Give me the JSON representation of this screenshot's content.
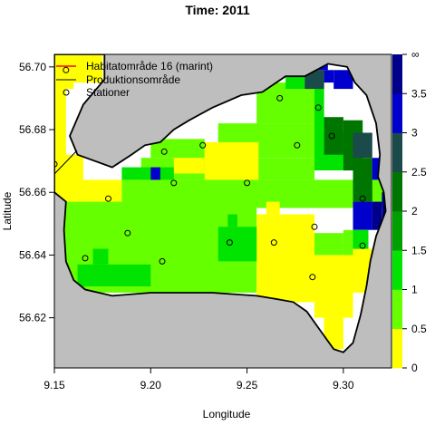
{
  "chart_data": {
    "type": "heatmap",
    "title": "Time: 2011",
    "xlabel": "Longitude",
    "ylabel": "Latitude",
    "xlim": [
      9.15,
      9.325
    ],
    "ylim": [
      56.604,
      56.704
    ],
    "xticks": [
      "9.15",
      "9.20",
      "9.25",
      "9.30"
    ],
    "yticks": [
      "56.62",
      "56.64",
      "56.66",
      "56.68",
      "56.70"
    ],
    "grid": false,
    "legend_position": "top-left",
    "legend": [
      {
        "label": "Habitatområde 16 (marint)",
        "symbol": "line",
        "color": "#ff0000"
      },
      {
        "label": "Produktionsområde",
        "symbol": "line",
        "color": "#000000"
      },
      {
        "label": "Stationer",
        "symbol": "circle",
        "color": "#000000"
      }
    ],
    "colors": {
      "land": "#bebebe",
      "water": "#ffffff",
      "outline": "#000000"
    },
    "colorbar": {
      "labels": [
        "0",
        "0.5",
        "1",
        "1.5",
        "2",
        "2.5",
        "3",
        "3.5",
        "∞"
      ],
      "bands": [
        {
          "from": 0,
          "to": 0.5,
          "color": "#ffff00"
        },
        {
          "from": 0.5,
          "to": 1,
          "color": "#66ff00"
        },
        {
          "from": 1,
          "to": 1.5,
          "color": "#00e400"
        },
        {
          "from": 1.5,
          "to": 2,
          "color": "#00a000"
        },
        {
          "from": 2,
          "to": 2.5,
          "color": "#007500"
        },
        {
          "from": 2.5,
          "to": 3,
          "color": "#1a4a4a"
        },
        {
          "from": 3,
          "to": 3.5,
          "color": "#0000cc"
        },
        {
          "from": 3.5,
          "to": 4,
          "color": "#00008b"
        }
      ]
    },
    "cells": [
      {
        "x": [
          9.15,
          9.16
        ],
        "y": [
          56.693,
          56.704
        ],
        "color": "#ffff00"
      },
      {
        "x": [
          9.16,
          9.175
        ],
        "y": [
          56.695,
          56.704
        ],
        "color": "#ffff00"
      },
      {
        "x": [
          9.15,
          9.156
        ],
        "y": [
          56.672,
          56.693
        ],
        "color": "#ffff00"
      },
      {
        "x": [
          9.15,
          9.165
        ],
        "y": [
          56.657,
          56.672
        ],
        "color": "#ffff00"
      },
      {
        "x": [
          9.165,
          9.185
        ],
        "y": [
          56.655,
          56.664
        ],
        "color": "#ffff00"
      },
      {
        "x": [
          9.15,
          9.166
        ],
        "y": [
          56.65,
          56.657
        ],
        "color": "#ffff00"
      },
      {
        "x": [
          9.155,
          9.255
        ],
        "y": [
          56.628,
          56.657
        ],
        "color": "#66ff00"
      },
      {
        "x": [
          9.185,
          9.355
        ],
        "y": [
          56.655,
          56.664
        ],
        "color": "#66ff00"
      },
      {
        "x": [
          9.195,
          9.285
        ],
        "y": [
          56.664,
          56.671
        ],
        "color": "#66ff00"
      },
      {
        "x": [
          9.2,
          9.228
        ],
        "y": [
          56.671,
          56.677
        ],
        "color": "#66ff00"
      },
      {
        "x": [
          9.235,
          9.29
        ],
        "y": [
          56.671,
          56.682
        ],
        "color": "#66ff00"
      },
      {
        "x": [
          9.255,
          9.29
        ],
        "y": [
          56.682,
          56.695
        ],
        "color": "#66ff00"
      },
      {
        "x": [
          9.228,
          9.256
        ],
        "y": [
          56.664,
          56.676
        ],
        "color": "#ffff00"
      },
      {
        "x": [
          9.212,
          9.228
        ],
        "y": [
          56.666,
          56.671
        ],
        "color": "#ffff00"
      },
      {
        "x": [
          9.185,
          9.212
        ],
        "y": [
          56.664,
          56.668
        ],
        "color": "#00e400"
      },
      {
        "x": [
          9.2,
          9.205
        ],
        "y": [
          56.664,
          56.668
        ],
        "color": "#0000cc"
      },
      {
        "x": [
          9.255,
          9.285
        ],
        "y": [
          56.625,
          56.653
        ],
        "color": "#ffff00"
      },
      {
        "x": [
          9.26,
          9.267
        ],
        "y": [
          56.653,
          56.657
        ],
        "color": "#ffff00"
      },
      {
        "x": [
          9.285,
          9.305
        ],
        "y": [
          56.62,
          56.64
        ],
        "color": "#ffff00"
      },
      {
        "x": [
          9.29,
          9.3
        ],
        "y": [
          56.61,
          56.62
        ],
        "color": "#ffff00"
      },
      {
        "x": [
          9.305,
          9.315
        ],
        "y": [
          56.628,
          56.642
        ],
        "color": "#ffff00"
      },
      {
        "x": [
          9.235,
          9.255
        ],
        "y": [
          56.638,
          56.649
        ],
        "color": "#00e400"
      },
      {
        "x": [
          9.24,
          9.245
        ],
        "y": [
          56.649,
          56.653
        ],
        "color": "#00e400"
      },
      {
        "x": [
          9.162,
          9.2
        ],
        "y": [
          56.63,
          56.637
        ],
        "color": "#00e400"
      },
      {
        "x": [
          9.17,
          9.178
        ],
        "y": [
          56.637,
          56.642
        ],
        "color": "#00e400"
      },
      {
        "x": [
          9.285,
          9.305
        ],
        "y": [
          56.667,
          56.679
        ],
        "color": "#00e400"
      },
      {
        "x": [
          9.285,
          9.29
        ],
        "y": [
          56.679,
          56.695
        ],
        "color": "#00e400"
      },
      {
        "x": [
          9.29,
          9.3
        ],
        "y": [
          56.672,
          56.684
        ],
        "color": "#007500"
      },
      {
        "x": [
          9.3,
          9.31
        ],
        "y": [
          56.667,
          56.683
        ],
        "color": "#007500"
      },
      {
        "x": [
          9.27,
          9.28
        ],
        "y": [
          56.693,
          56.699
        ],
        "color": "#00e400"
      },
      {
        "x": [
          9.28,
          9.29
        ],
        "y": [
          56.693,
          56.699
        ],
        "color": "#1a4a4a"
      },
      {
        "x": [
          9.29,
          9.295
        ],
        "y": [
          56.695,
          56.699
        ],
        "color": "#0000cc"
      },
      {
        "x": [
          9.287,
          9.292
        ],
        "y": [
          56.699,
          56.704
        ],
        "color": "#0000cc"
      },
      {
        "x": [
          9.295,
          9.305
        ],
        "y": [
          56.693,
          56.699
        ],
        "color": "#0000cc"
      },
      {
        "x": [
          9.305,
          9.315
        ],
        "y": [
          56.671,
          56.679
        ],
        "color": "#1a4a4a"
      },
      {
        "x": [
          9.305,
          9.315
        ],
        "y": [
          56.657,
          56.671
        ],
        "color": "#007500"
      },
      {
        "x": [
          9.315,
          9.32
        ],
        "y": [
          56.664,
          56.671
        ],
        "color": "#0000cc"
      },
      {
        "x": [
          9.305,
          9.315
        ],
        "y": [
          56.648,
          56.657
        ],
        "color": "#0000cc"
      },
      {
        "x": [
          9.315,
          9.32
        ],
        "y": [
          56.648,
          56.657
        ],
        "color": "#00008b"
      },
      {
        "x": [
          9.32,
          9.325
        ],
        "y": [
          56.648,
          56.66
        ],
        "color": "#00008b"
      },
      {
        "x": [
          9.305,
          9.313
        ],
        "y": [
          56.642,
          56.648
        ],
        "color": "#00e400"
      },
      {
        "x": [
          9.3,
          9.305
        ],
        "y": [
          56.64,
          56.648
        ],
        "color": "#66ff00"
      },
      {
        "x": [
          9.285,
          9.3
        ],
        "y": [
          56.64,
          56.647
        ],
        "color": "#66ff00"
      }
    ],
    "stations": [
      {
        "lon": 9.15,
        "lat": 56.669
      },
      {
        "lon": 9.156,
        "lat": 56.699
      },
      {
        "lon": 9.178,
        "lat": 56.658
      },
      {
        "lon": 9.188,
        "lat": 56.647
      },
      {
        "lon": 9.166,
        "lat": 56.639
      },
      {
        "lon": 9.207,
        "lat": 56.673
      },
      {
        "lon": 9.212,
        "lat": 56.663
      },
      {
        "lon": 9.227,
        "lat": 56.675
      },
      {
        "lon": 9.25,
        "lat": 56.663
      },
      {
        "lon": 9.267,
        "lat": 56.69
      },
      {
        "lon": 9.276,
        "lat": 56.675
      },
      {
        "lon": 9.287,
        "lat": 56.687
      },
      {
        "lon": 9.294,
        "lat": 56.678
      },
      {
        "lon": 9.31,
        "lat": 56.658
      },
      {
        "lon": 9.285,
        "lat": 56.649
      },
      {
        "lon": 9.264,
        "lat": 56.644
      },
      {
        "lon": 9.241,
        "lat": 56.644
      },
      {
        "lon": 9.206,
        "lat": 56.638
      },
      {
        "lon": 9.284,
        "lat": 56.633
      },
      {
        "lon": 9.31,
        "lat": 56.643
      }
    ]
  }
}
